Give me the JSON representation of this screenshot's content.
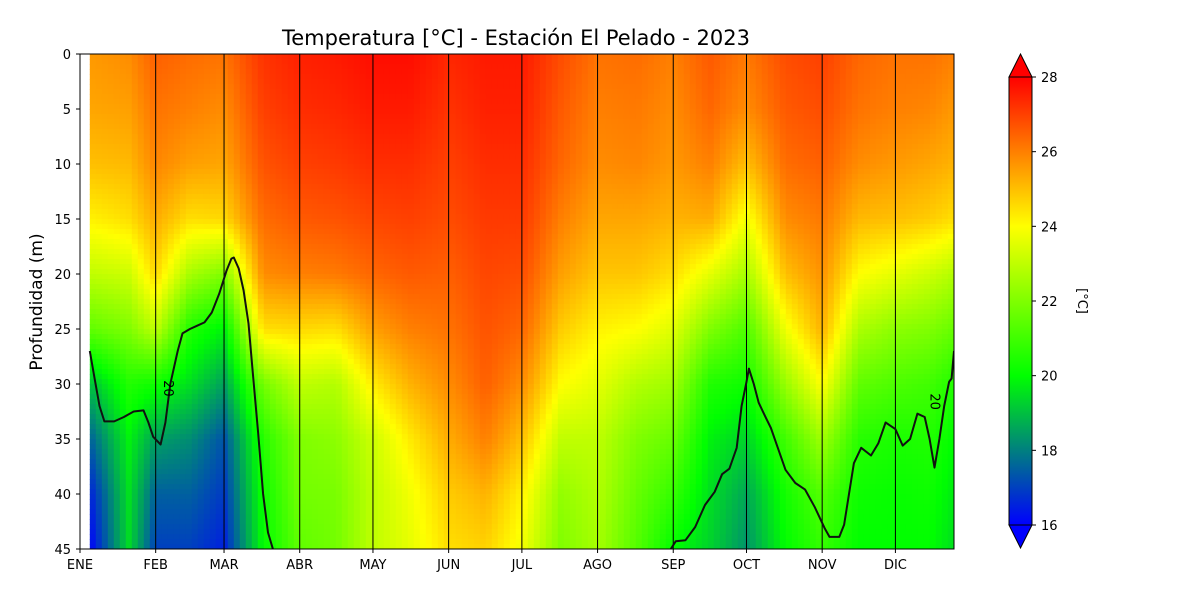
{
  "chart_data": {
    "type": "heatmap",
    "title": "Temperatura [°C] - Estación El Pelado - 2023",
    "xlabel": "",
    "ylabel": "Profundidad (m)",
    "x_tick_labels": [
      "ENE",
      "FEB",
      "MAR",
      "ABR",
      "MAY",
      "JUN",
      "JUL",
      "AGO",
      "SEP",
      "OCT",
      "NOV",
      "DIC"
    ],
    "x_tick_days": [
      0,
      31,
      59,
      90,
      120,
      151,
      181,
      212,
      243,
      273,
      304,
      334
    ],
    "xlim_days": [
      0,
      358
    ],
    "y_ticks": [
      0,
      5,
      10,
      15,
      20,
      25,
      30,
      35,
      40,
      45
    ],
    "ylim": [
      45,
      0
    ],
    "y_inverted": true,
    "colorbar": {
      "label": "[°C]",
      "min": 16,
      "max": 28,
      "ticks": [
        16,
        18,
        20,
        22,
        24,
        26,
        28
      ],
      "extend": "both",
      "colors": [
        "#0000ff",
        "#00ff00",
        "#ffff00",
        "#ff0000"
      ]
    },
    "depths": [
      0,
      5,
      10,
      15,
      20,
      25,
      30,
      35,
      40,
      45
    ],
    "profiles": [
      {
        "day": 4,
        "temps": [
          25.6,
          25.4,
          25.0,
          24.2,
          23.0,
          21.5,
          19.0,
          17.5,
          16.5,
          16.0
        ]
      },
      {
        "day": 20,
        "temps": [
          25.8,
          25.5,
          25.1,
          24.5,
          23.2,
          22.0,
          20.5,
          19.8,
          19.5,
          19.4
        ]
      },
      {
        "day": 31,
        "temps": [
          26.5,
          26.2,
          25.9,
          25.3,
          24.6,
          23.0,
          20.2,
          18.5,
          17.5,
          17.0
        ]
      },
      {
        "day": 45,
        "temps": [
          26.3,
          26.0,
          25.5,
          24.5,
          22.6,
          20.5,
          19.5,
          18.2,
          17.5,
          17.0
        ]
      },
      {
        "day": 59,
        "temps": [
          26.2,
          25.8,
          25.4,
          24.6,
          22.0,
          19.8,
          18.5,
          17.3,
          16.9,
          16.5
        ]
      },
      {
        "day": 75,
        "temps": [
          27.2,
          27.0,
          26.7,
          26.3,
          25.8,
          24.5,
          21.8,
          20.6,
          20.2,
          20.0
        ]
      },
      {
        "day": 90,
        "temps": [
          27.5,
          27.3,
          27.0,
          26.6,
          26.0,
          24.6,
          23.0,
          22.0,
          21.8,
          21.5
        ]
      },
      {
        "day": 105,
        "temps": [
          27.6,
          27.4,
          27.1,
          26.7,
          26.1,
          24.5,
          22.8,
          22.2,
          21.9,
          21.8
        ]
      },
      {
        "day": 120,
        "temps": [
          27.8,
          27.6,
          27.3,
          26.9,
          26.4,
          25.5,
          24.3,
          23.2,
          23.0,
          23.0
        ]
      },
      {
        "day": 135,
        "temps": [
          27.8,
          27.6,
          27.3,
          27.0,
          26.6,
          26.0,
          25.2,
          24.3,
          23.8,
          23.6
        ]
      },
      {
        "day": 151,
        "temps": [
          27.4,
          27.2,
          27.0,
          26.8,
          26.5,
          26.2,
          25.8,
          25.3,
          24.8,
          24.5
        ]
      },
      {
        "day": 166,
        "temps": [
          27.6,
          27.5,
          27.3,
          27.1,
          26.9,
          26.7,
          26.5,
          26.0,
          25.2,
          24.7
        ]
      },
      {
        "day": 181,
        "temps": [
          27.6,
          27.5,
          27.3,
          27.1,
          26.8,
          26.4,
          25.8,
          25.0,
          24.2,
          23.8
        ]
      },
      {
        "day": 197,
        "temps": [
          26.8,
          26.6,
          26.4,
          26.0,
          25.5,
          24.8,
          24.0,
          23.0,
          22.3,
          22.0
        ]
      },
      {
        "day": 212,
        "temps": [
          26.2,
          26.0,
          25.8,
          25.4,
          24.9,
          24.2,
          23.6,
          23.0,
          22.8,
          22.6
        ]
      },
      {
        "day": 228,
        "temps": [
          26.3,
          26.1,
          25.9,
          25.4,
          24.9,
          24.0,
          22.8,
          22.0,
          21.6,
          21.3
        ]
      },
      {
        "day": 243,
        "temps": [
          26.0,
          25.8,
          25.6,
          25.2,
          24.5,
          23.5,
          22.5,
          21.6,
          20.8,
          20.0
        ]
      },
      {
        "day": 258,
        "temps": [
          26.6,
          26.4,
          26.0,
          25.3,
          23.6,
          22.0,
          20.5,
          19.8,
          19.5,
          19.3
        ]
      },
      {
        "day": 273,
        "temps": [
          26.1,
          25.8,
          25.0,
          23.8,
          22.6,
          21.2,
          20.2,
          19.3,
          18.6,
          18.3
        ]
      },
      {
        "day": 289,
        "temps": [
          26.8,
          26.6,
          26.3,
          25.8,
          25.0,
          23.8,
          22.4,
          21.0,
          20.3,
          20.0
        ]
      },
      {
        "day": 304,
        "temps": [
          27.0,
          26.8,
          26.5,
          26.1,
          25.7,
          25.2,
          24.0,
          22.5,
          21.3,
          20.8
        ]
      },
      {
        "day": 319,
        "temps": [
          26.4,
          26.2,
          25.8,
          25.1,
          24.0,
          22.7,
          21.5,
          20.6,
          20.2,
          20.0
        ]
      },
      {
        "day": 334,
        "temps": [
          26.2,
          26.0,
          25.6,
          25.0,
          23.6,
          22.2,
          21.2,
          20.4,
          20.1,
          20.0
        ]
      },
      {
        "day": 348,
        "temps": [
          26.2,
          25.9,
          25.4,
          24.8,
          23.2,
          22.0,
          21.0,
          20.5,
          20.2,
          20.0
        ]
      },
      {
        "day": 358,
        "temps": [
          26.0,
          25.6,
          25.2,
          24.5,
          22.8,
          21.6,
          20.5,
          20.0,
          19.7,
          19.5
        ]
      }
    ],
    "contour_20C": {
      "level": 20,
      "label": "20",
      "segments": [
        [
          [
            4,
            27.0
          ],
          [
            6,
            29.5
          ],
          [
            8,
            32.0
          ],
          [
            10,
            33.4
          ],
          [
            14,
            33.4
          ],
          [
            18,
            33.0
          ],
          [
            22,
            32.5
          ],
          [
            26,
            32.4
          ],
          [
            28,
            33.5
          ],
          [
            30,
            34.8
          ],
          [
            33,
            35.5
          ],
          [
            35,
            33.5
          ],
          [
            37,
            30.0
          ],
          [
            40,
            27.0
          ],
          [
            42,
            25.4
          ],
          [
            45,
            25.0
          ],
          [
            48,
            24.7
          ],
          [
            51,
            24.4
          ],
          [
            54,
            23.5
          ],
          [
            57,
            21.8
          ],
          [
            60,
            19.7
          ],
          [
            62,
            18.6
          ],
          [
            63,
            18.5
          ],
          [
            65,
            19.5
          ],
          [
            67,
            21.5
          ],
          [
            69,
            24.5
          ],
          [
            71,
            29.5
          ],
          [
            73,
            34.5
          ],
          [
            75,
            40.0
          ],
          [
            77,
            43.5
          ],
          [
            79,
            45.0
          ]
        ],
        [
          [
            242,
            45.0
          ],
          [
            244,
            44.3
          ],
          [
            248,
            44.2
          ],
          [
            252,
            43.0
          ],
          [
            256,
            41.0
          ],
          [
            260,
            39.8
          ],
          [
            263,
            38.2
          ],
          [
            266,
            37.7
          ],
          [
            269,
            35.8
          ],
          [
            271,
            32.0
          ],
          [
            273,
            29.8
          ],
          [
            274,
            28.6
          ],
          [
            276,
            30.0
          ],
          [
            278,
            31.7
          ],
          [
            281,
            33.1
          ],
          [
            283,
            34.0
          ],
          [
            286,
            35.9
          ],
          [
            289,
            37.8
          ],
          [
            293,
            39.0
          ],
          [
            297,
            39.6
          ],
          [
            301,
            41.2
          ],
          [
            305,
            43.1
          ],
          [
            307,
            43.9
          ],
          [
            311,
            43.9
          ],
          [
            313,
            42.8
          ],
          [
            315,
            40.0
          ],
          [
            317,
            37.2
          ],
          [
            320,
            35.8
          ],
          [
            324,
            36.5
          ],
          [
            327,
            35.4
          ],
          [
            330,
            33.5
          ],
          [
            334,
            34.1
          ],
          [
            337,
            35.6
          ],
          [
            340,
            35.0
          ],
          [
            343,
            32.7
          ],
          [
            346,
            33.0
          ],
          [
            348,
            35.0
          ],
          [
            350,
            37.6
          ],
          [
            352,
            35.0
          ],
          [
            354,
            32.0
          ],
          [
            356,
            29.8
          ],
          [
            357,
            29.5
          ],
          [
            358,
            27.0
          ]
        ]
      ]
    }
  }
}
